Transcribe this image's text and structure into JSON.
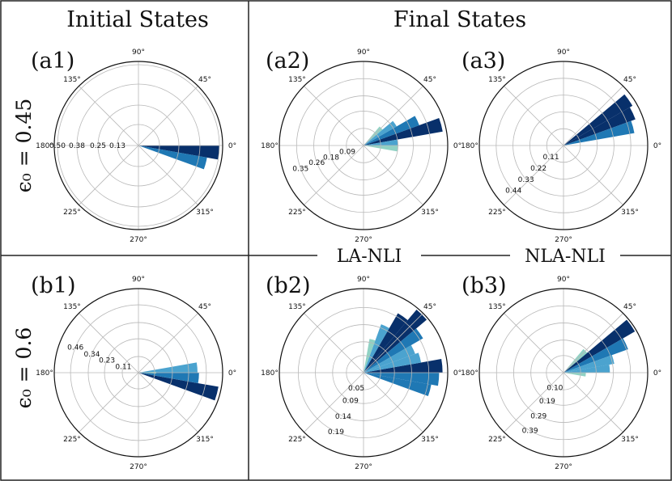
{
  "headers": {
    "initial": "Initial States",
    "final": "Final States"
  },
  "row_labels": {
    "a": "ϵ₀ = 0.45",
    "b": "ϵ₀ = 0.6"
  },
  "middle_labels": {
    "la_nli": "LA-NLI",
    "nla_nli": "NLA-NLI"
  },
  "palette": [
    "#08306b",
    "#1f78b4",
    "#4ba3cf",
    "#90d2c4"
  ],
  "chart_data": [
    {
      "type": "polar-bar",
      "panel": "(a1)",
      "rmax": 0.52,
      "angle_labels": [
        "0°",
        "45°",
        "90°",
        "135°",
        "180°",
        "225°",
        "270°",
        "315°"
      ],
      "radial_ticks": [
        0.13,
        0.25,
        0.38,
        0.5
      ],
      "radial_tick_labels": [
        "0.13",
        "0.25",
        "0.38",
        "0.50"
      ],
      "tick_label_angle_deg": 180,
      "bars": [
        {
          "angle": -5,
          "width": 10,
          "r": 0.5,
          "color": "#08306b"
        },
        {
          "angle": -15,
          "width": 10,
          "r": 0.43,
          "color": "#1f78b4"
        }
      ]
    },
    {
      "type": "polar-bar",
      "panel": "(a2)",
      "rmax": 0.44,
      "angle_labels": [
        "0°",
        "45°",
        "90°",
        "135°",
        "180°",
        "225°",
        "270°",
        "315°"
      ],
      "radial_ticks": [
        0.09,
        0.18,
        0.26,
        0.35
      ],
      "radial_tick_labels": [
        "0.09",
        "0.18",
        "0.26",
        "0.35"
      ],
      "tick_label_angle_deg": 200,
      "bars": [
        {
          "angle": 15,
          "width": 10,
          "r": 0.42,
          "color": "#08306b"
        },
        {
          "angle": 25,
          "width": 10,
          "r": 0.31,
          "color": "#1f78b4"
        },
        {
          "angle": 35,
          "width": 10,
          "r": 0.2,
          "color": "#4ba3cf"
        },
        {
          "angle": 45,
          "width": 10,
          "r": 0.13,
          "color": "#90d2c4"
        },
        {
          "angle": 5,
          "width": 10,
          "r": 0.18,
          "color": "#4ba3cf"
        },
        {
          "angle": -5,
          "width": 10,
          "r": 0.18,
          "color": "#90d2c4"
        }
      ]
    },
    {
      "type": "polar-bar",
      "panel": "(a3)",
      "rmax": 0.55,
      "angle_labels": [
        "0°",
        "45°",
        "90°",
        "135°",
        "180°",
        "225°",
        "270°",
        "315°"
      ],
      "radial_ticks": [
        0.11,
        0.22,
        0.33,
        0.44
      ],
      "radial_tick_labels": [
        "0.11",
        "0.22",
        "0.33",
        "0.44"
      ],
      "tick_label_angle_deg": 222,
      "bars": [
        {
          "angle": 35,
          "width": 10,
          "r": 0.52,
          "color": "#08306b"
        },
        {
          "angle": 25,
          "width": 10,
          "r": 0.5,
          "color": "#08306b"
        },
        {
          "angle": 15,
          "width": 10,
          "r": 0.47,
          "color": "#1f78b4"
        }
      ]
    },
    {
      "type": "polar-bar",
      "panel": "(b1)",
      "rmax": 0.57,
      "angle_labels": [
        "0°",
        "45°",
        "90°",
        "135°",
        "180°",
        "225°",
        "270°",
        "315°"
      ],
      "radial_ticks": [
        0.11,
        0.23,
        0.34,
        0.46
      ],
      "radial_tick_labels": [
        "0.11",
        "0.23",
        "0.34",
        "0.46"
      ],
      "tick_label_angle_deg": 158,
      "bars": [
        {
          "angle": -15,
          "width": 10,
          "r": 0.55,
          "color": "#08306b"
        },
        {
          "angle": -5,
          "width": 10,
          "r": 0.41,
          "color": "#1f78b4"
        },
        {
          "angle": 5,
          "width": 10,
          "r": 0.4,
          "color": "#4ba3cf"
        },
        {
          "angle": 0,
          "width": 6,
          "r": 0.12,
          "color": "#90d2c4"
        }
      ]
    },
    {
      "type": "polar-bar",
      "panel": "(b2)",
      "rmax": 0.245,
      "angle_labels": [
        "0°",
        "45°",
        "90°",
        "135°",
        "180°",
        "225°",
        "270°",
        "315°"
      ],
      "radial_ticks": [
        0.05,
        0.09,
        0.14,
        0.19
      ],
      "radial_tick_labels": [
        "0.05",
        "0.09",
        "0.14",
        "0.19"
      ],
      "tick_label_angle_deg": 245,
      "bars": [
        {
          "angle": 45,
          "width": 10,
          "r": 0.24,
          "color": "#08306b"
        },
        {
          "angle": 55,
          "width": 10,
          "r": 0.2,
          "color": "#08306b"
        },
        {
          "angle": 35,
          "width": 10,
          "r": 0.2,
          "color": "#1f78b4"
        },
        {
          "angle": 65,
          "width": 10,
          "r": 0.15,
          "color": "#4ba3cf"
        },
        {
          "angle": 25,
          "width": 10,
          "r": 0.16,
          "color": "#4ba3cf"
        },
        {
          "angle": 75,
          "width": 10,
          "r": 0.1,
          "color": "#90d2c4"
        },
        {
          "angle": 5,
          "width": 10,
          "r": 0.23,
          "color": "#08306b"
        },
        {
          "angle": -5,
          "width": 10,
          "r": 0.22,
          "color": "#1f78b4"
        },
        {
          "angle": -15,
          "width": 10,
          "r": 0.2,
          "color": "#1f78b4"
        },
        {
          "angle": 15,
          "width": 10,
          "r": 0.17,
          "color": "#4ba3cf"
        }
      ]
    },
    {
      "type": "polar-bar",
      "panel": "(b3)",
      "rmax": 0.49,
      "angle_labels": [
        "0°",
        "45°",
        "90°",
        "135°",
        "180°",
        "225°",
        "270°",
        "315°"
      ],
      "radial_ticks": [
        0.1,
        0.19,
        0.29,
        0.39
      ],
      "radial_tick_labels": [
        "0.10",
        "0.19",
        "0.29",
        "0.39"
      ],
      "tick_label_angle_deg": 240,
      "bars": [
        {
          "angle": 35,
          "width": 10,
          "r": 0.48,
          "color": "#08306b"
        },
        {
          "angle": 25,
          "width": 10,
          "r": 0.4,
          "color": "#1f78b4"
        },
        {
          "angle": 15,
          "width": 10,
          "r": 0.3,
          "color": "#4ba3cf"
        },
        {
          "angle": 45,
          "width": 10,
          "r": 0.18,
          "color": "#90d2c4"
        },
        {
          "angle": 5,
          "width": 10,
          "r": 0.27,
          "color": "#4ba3cf"
        },
        {
          "angle": -5,
          "width": 10,
          "r": 0.13,
          "color": "#90d2c4"
        }
      ]
    }
  ]
}
